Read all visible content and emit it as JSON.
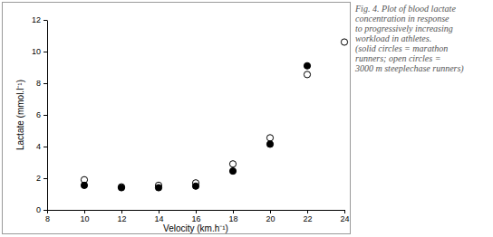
{
  "chart_data": {
    "type": "scatter",
    "annotations": [
      "Fig. 4. Plot of blood lactate",
      "concentration in response",
      "to progressively increasing",
      "workload in athletes.",
      "(solid circles = marathon",
      "runners; open circles =",
      "3000 m steeplechase runners)"
    ],
    "x_label": "Velocity (km.h⁻¹)",
    "y_label": "Lactate (mmol.l⁻¹)",
    "series": [
      {
        "color": "#000000",
        "marker": "open",
        "x": [
          10,
          12,
          14,
          16,
          18,
          20,
          22,
          24
        ],
        "values": [
          1.9,
          1.45,
          1.55,
          1.7,
          2.9,
          4.55,
          8.55,
          10.6
        ]
      },
      {
        "color": "#000000",
        "marker": "filled",
        "x": [
          10,
          12,
          14,
          16,
          18,
          20,
          22
        ],
        "values": [
          1.55,
          1.4,
          1.4,
          1.5,
          2.45,
          4.15,
          9.1
        ]
      }
    ],
    "xlim": [
      8,
      24
    ],
    "xticks": [
      8,
      10,
      12,
      14,
      16,
      18,
      20,
      22,
      24
    ],
    "ylim": [
      0,
      12
    ],
    "yticks": [
      0,
      2,
      4,
      6,
      8,
      10,
      12
    ],
    "grid": false
  }
}
